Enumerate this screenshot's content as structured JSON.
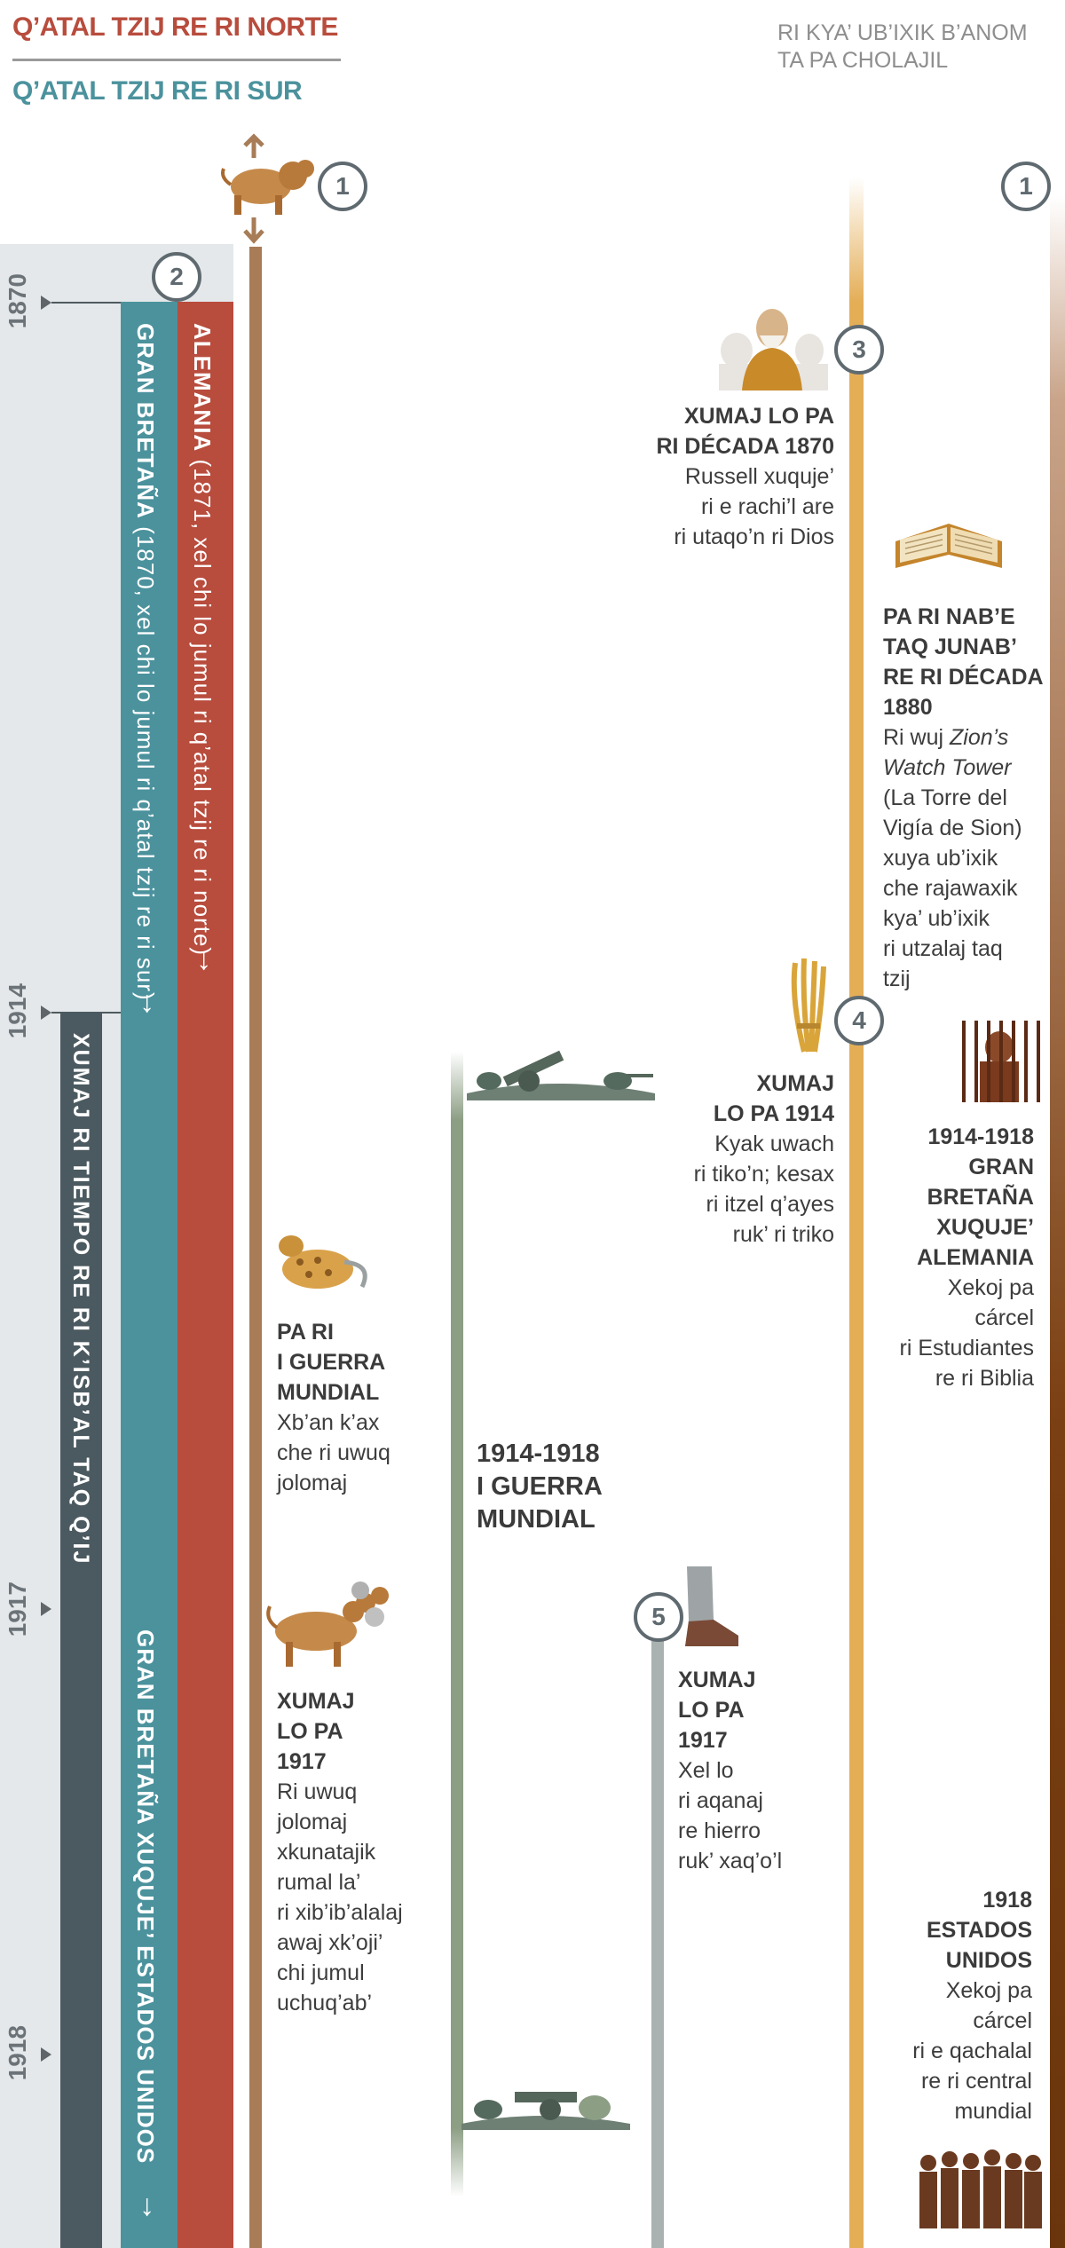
{
  "header": {
    "north_label": "Q’ATAL TZIJ RE RI NORTE",
    "south_label": "Q’ATAL TZIJ RE RI SUR",
    "right_label_line1": "RI KYA’ UB’IXIK B’ANOM",
    "right_label_line2": "TA PA CHOLAJIL"
  },
  "years": [
    "1870",
    "1914",
    "1917",
    "1918"
  ],
  "bars": {
    "alemania_bold": "ALEMANIA",
    "alemania_rest": " (1871, xel chi lo jumul ri q’atal tzij re ri norte)",
    "gb_bold": "GRAN BRETAÑA",
    "gb_rest": " (1870, xel chi lo jumul ri q’atal tzij re ri sur)",
    "gb_us": "GRAN BRETAÑA XUQUJE’ ESTADOS UNIDOS",
    "tiempo": "XUMAJ RI TIEMPO RE RI K’ISB’AL TAQ Q’IJ",
    "arrow": "→"
  },
  "markers": [
    "1",
    "2",
    "1",
    "3",
    "4",
    "5"
  ],
  "events": {
    "e3": {
      "title_line1": "XUMAJ LO PA",
      "title_line2": "RI DÉCADA 1870",
      "lines": [
        "Russell xuquje’",
        "ri e rachi’l are",
        "ri utaqo’n ri Dios"
      ]
    },
    "e1880": {
      "title": [
        "PA RI NAB’E",
        "TAQ JUNAB’",
        "RE RI DÉCADA",
        "1880"
      ],
      "lines_a": "Ri wuj ",
      "lines_italic": [
        "Zion’s",
        "Watch Tower"
      ],
      "lines": [
        "(La Torre del",
        "Vigía de Sion)",
        "xuya ub’ixik",
        "che rajawaxik",
        "kya’ ub’ixik",
        "ri utzalaj taq",
        "tzij"
      ]
    },
    "e4": {
      "title": [
        "XUMAJ",
        "LO PA 1914"
      ],
      "lines": [
        "Kyak uwach",
        "ri tiko’n; kesax",
        "ri itzel q’ayes",
        "ruk’ ri triko"
      ]
    },
    "e_prison_1914": {
      "title": [
        "1914-1918",
        "GRAN",
        "BRETAÑA",
        "XUQUJE’",
        "ALEMANIA"
      ],
      "lines": [
        "Xekoj pa",
        "cárcel",
        "ri Estudiantes",
        "re ri Biblia"
      ]
    },
    "e_ww1_left": {
      "title": [
        "PA RI",
        "I GUERRA",
        "MUNDIAL"
      ],
      "lines": [
        "Xb’an k’ax",
        "che ri uwuq",
        "jolomaj"
      ]
    },
    "e_ww1_center": {
      "lines": [
        "1914-1918",
        "I GUERRA",
        "MUNDIAL"
      ]
    },
    "e1917_left": {
      "title": [
        "XUMAJ",
        "LO PA",
        "1917"
      ],
      "lines": [
        "Ri uwuq",
        "jolomaj",
        "xkunatajik",
        "rumal la’",
        "ri xib’ib’alalaj",
        "awaj xk’oji’",
        "chi jumul",
        "uchuq’ab’"
      ]
    },
    "e5": {
      "title": [
        "XUMAJ",
        "LO PA",
        "1917"
      ],
      "lines": [
        "Xel lo",
        "ri aqanaj",
        "re hierro",
        "ruk’ xaq’o’l"
      ]
    },
    "e1918": {
      "title": [
        "1918",
        "ESTADOS",
        "UNIDOS"
      ],
      "lines": [
        "Xekoj pa",
        "cárcel",
        "ri e qachalal",
        "re ri central",
        "mundial"
      ]
    }
  },
  "colors": {
    "alemania": "#b84c3d",
    "gran_bretana": "#4b929d",
    "tiempo": "#4b5a60",
    "beast_line": "#a77c57",
    "war_line": "#8c9e84",
    "gold_line": "#e4ae57",
    "brown_line": "#7a3f12",
    "grey_line": "#a9b2b0"
  }
}
